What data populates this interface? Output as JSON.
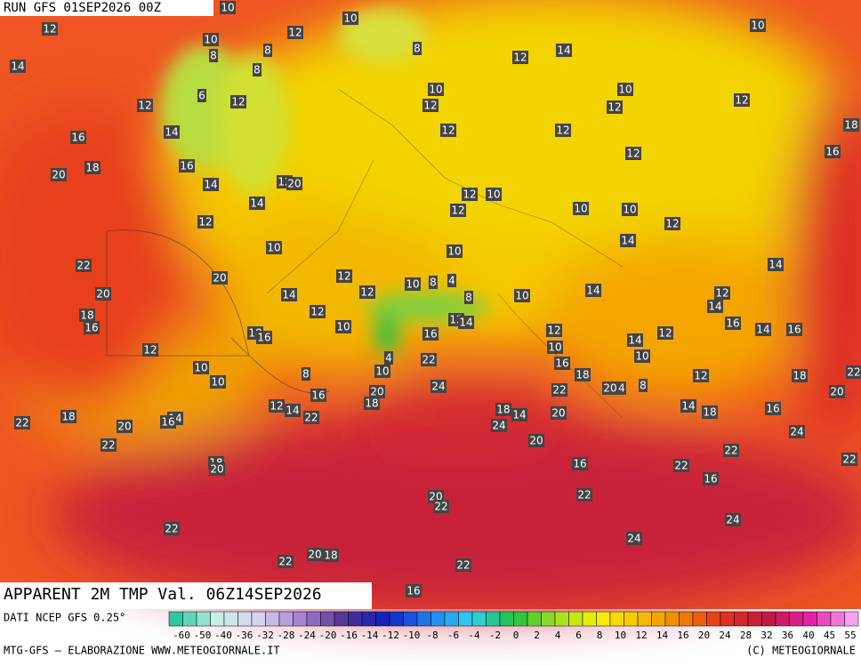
{
  "header": {
    "run": "RUN GFS 01SEP2026 00Z"
  },
  "footer": {
    "title": "APPARENT 2M TMP Val. 06Z14SEP2026",
    "source": "DATI NCEP GFS 0.25°",
    "credit": "MTG-GFS — ELABORAZIONE WWW.METEOGIORNALE.IT",
    "copyright": "(C) METEOGIORNALE"
  },
  "colorbar": {
    "ticks": [
      -60,
      -50,
      -40,
      -36,
      -32,
      -28,
      -24,
      -20,
      -16,
      -14,
      -12,
      -10,
      -8,
      -6,
      -4,
      -2,
      0,
      2,
      4,
      6,
      8,
      10,
      12,
      14,
      16,
      20,
      24,
      28,
      32,
      36,
      40,
      45,
      55
    ]
  },
  "map_labels": [
    12,
    10,
    10,
    10,
    10,
    8,
    12,
    14,
    8,
    8,
    8,
    12,
    14,
    6,
    12,
    12,
    10,
    10,
    12,
    12,
    12,
    18,
    14,
    16,
    12,
    12,
    16,
    18,
    20,
    12,
    16,
    14,
    12,
    20,
    12,
    10,
    14,
    12,
    10,
    10,
    12,
    12,
    10,
    10,
    14,
    22,
    14,
    20,
    12,
    10,
    8,
    4,
    12,
    14,
    8,
    14,
    10,
    20,
    12,
    14,
    12,
    18,
    16,
    10,
    12,
    14,
    12,
    16,
    14,
    16,
    14,
    12,
    18,
    16,
    16,
    10,
    10,
    12,
    4,
    22,
    16,
    10,
    10,
    8,
    10,
    18,
    8,
    12,
    18,
    22,
    20,
    24,
    22,
    20,
    4,
    20,
    16,
    18,
    12,
    14,
    18,
    14,
    20,
    14,
    18,
    16,
    22,
    22,
    18,
    14,
    16,
    24,
    20,
    24,
    20,
    22,
    22,
    18,
    20,
    16,
    22,
    22,
    16,
    22,
    20,
    22,
    24,
    22,
    24,
    22,
    20,
    18,
    22,
    16
  ]
}
